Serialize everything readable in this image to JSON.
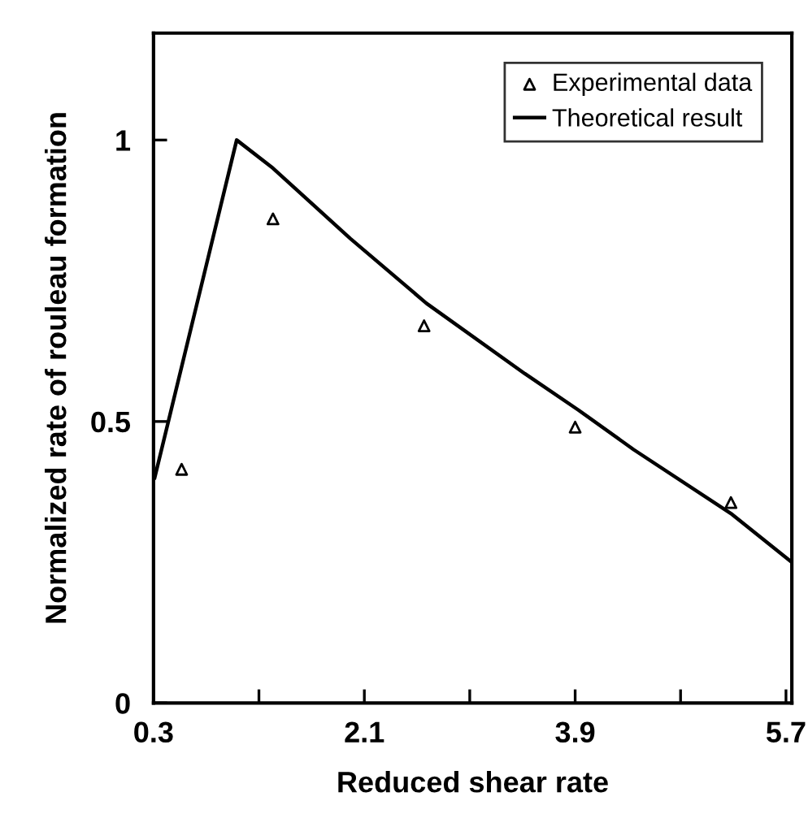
{
  "chart_data": {
    "type": "line",
    "xlabel": "Reduced shear rate",
    "ylabel": "Normalized rate of rouleau formation",
    "xlim": [
      0.3,
      5.75
    ],
    "ylim": [
      0,
      1.19
    ],
    "xticks": [
      0.3,
      {
        "value": 1.2,
        "label": null
      },
      2.1,
      {
        "value": 3.0,
        "label": null
      },
      3.9,
      {
        "value": 4.8,
        "label": null
      },
      5.7
    ],
    "yticks": [
      0,
      0.5,
      1
    ],
    "legend": "top right",
    "grid": false,
    "series": [
      {
        "name": "Experimental data",
        "type": "scatter",
        "marker": "triangle",
        "color": "#000000",
        "x": [
          0.54,
          1.32,
          2.61,
          3.9,
          5.23
        ],
        "values": [
          0.415,
          0.86,
          0.67,
          0.49,
          0.356
        ]
      },
      {
        "name": "Theoretical result",
        "marker": "none",
        "line_style": "solid",
        "color": "#000000",
        "x": [
          0.31,
          1.01,
          1.32,
          1.98,
          2.63,
          3.47,
          3.93,
          4.4,
          5.24,
          5.75
        ],
        "values": [
          0.4,
          1.0,
          0.95,
          0.825,
          0.71,
          0.585,
          0.52,
          0.45,
          0.335,
          0.25
        ]
      }
    ]
  }
}
